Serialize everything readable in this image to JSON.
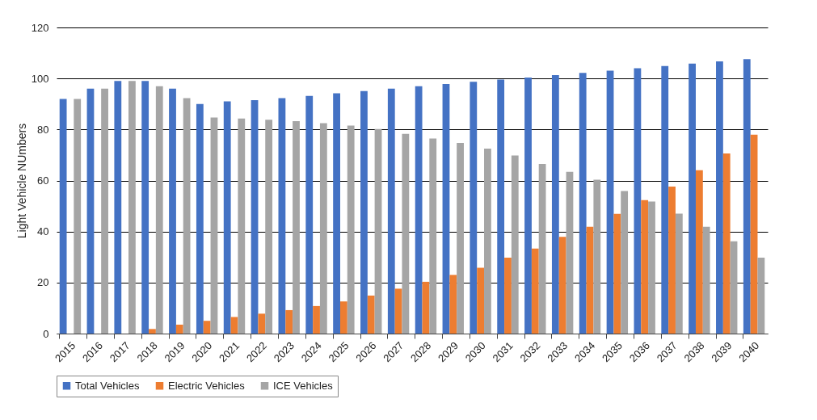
{
  "chart_data": {
    "type": "bar",
    "ylabel": "Light Vehicle NUmbers",
    "categories": [
      "2015",
      "2016",
      "2017",
      "2018",
      "2019",
      "2020",
      "2021",
      "2022",
      "2023",
      "2024",
      "2025",
      "2026",
      "2027",
      "2028",
      "2029",
      "2030",
      "2031",
      "2032",
      "2033",
      "2034",
      "2035",
      "2036",
      "2037",
      "2038",
      "2039",
      "2040"
    ],
    "series": [
      {
        "name": "Total Vehicles",
        "color": "#4472c4",
        "values": [
          92,
          96,
          99,
          99,
          96,
          90,
          91,
          91.5,
          92.3,
          93.2,
          94.2,
          95.1,
          96,
          97,
          97.8,
          98.7,
          99.6,
          100.4,
          101.3,
          102.2,
          103.1,
          104,
          104.9,
          105.8,
          106.7,
          107.6
        ]
      },
      {
        "name": "Electric Vehicles",
        "color": "#ed7d31",
        "values": [
          0,
          0,
          0,
          1.8,
          3.5,
          5,
          6.5,
          7.8,
          9.2,
          10.8,
          12.6,
          14.9,
          17.6,
          20.3,
          23,
          25.8,
          29.8,
          33.3,
          37.9,
          41.9,
          46.9,
          52.3,
          57.6,
          64,
          70.6,
          78
        ]
      },
      {
        "name": "ICE Vehicles",
        "color": "#a5a5a5",
        "values": [
          92,
          96,
          99,
          97,
          92.3,
          84.7,
          84.3,
          83.8,
          83.3,
          82.5,
          81.5,
          80.2,
          78.3,
          76.5,
          74.7,
          72.5,
          69.8,
          66.5,
          63.4,
          60.3,
          55.9,
          51.8,
          47,
          41.9,
          36.2,
          29.8
        ]
      }
    ],
    "ylim": [
      0,
      120
    ],
    "yticks": [
      0,
      20,
      40,
      60,
      80,
      100,
      120
    ],
    "grid": "y",
    "legend": "bottom"
  }
}
